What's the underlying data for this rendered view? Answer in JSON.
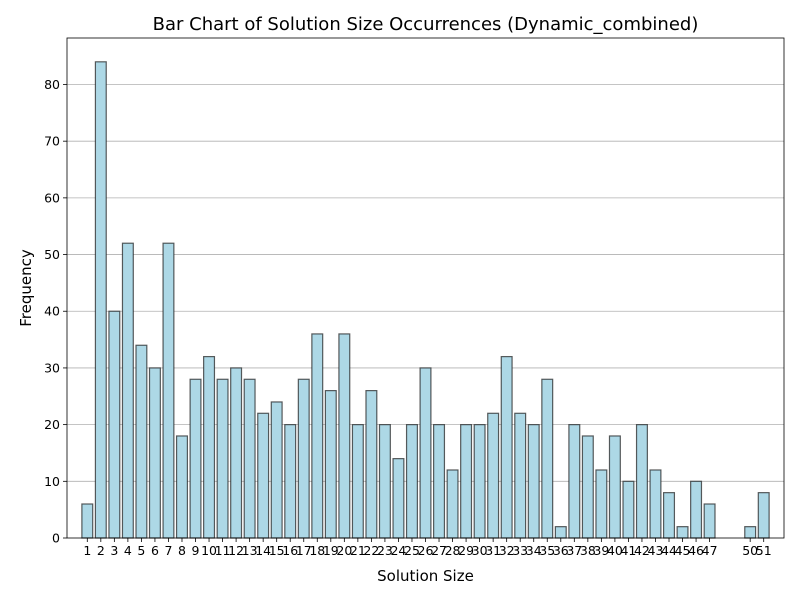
{
  "chart_data": {
    "type": "bar",
    "title": "Bar Chart of Solution Size Occurrences (Dynamic_combined)",
    "xlabel": "Solution Size",
    "ylabel": "Frequency",
    "x": [
      1,
      2,
      3,
      4,
      5,
      6,
      7,
      8,
      9,
      10,
      11,
      12,
      13,
      14,
      15,
      16,
      17,
      18,
      19,
      20,
      21,
      22,
      23,
      24,
      25,
      26,
      27,
      28,
      29,
      30,
      31,
      32,
      33,
      34,
      35,
      36,
      37,
      38,
      39,
      40,
      41,
      42,
      43,
      44,
      45,
      46,
      47,
      50,
      51
    ],
    "values": [
      6,
      84,
      40,
      52,
      34,
      30,
      52,
      18,
      28,
      32,
      28,
      30,
      28,
      22,
      24,
      20,
      28,
      36,
      26,
      36,
      20,
      26,
      20,
      14,
      20,
      30,
      20,
      12,
      20,
      20,
      22,
      32,
      22,
      20,
      28,
      2,
      20,
      18,
      12,
      18,
      10,
      20,
      12,
      8,
      2,
      10,
      6,
      2,
      8
    ],
    "xlim": [
      -0.5,
      52.5
    ],
    "ylim": [
      0,
      88.2
    ],
    "yticks": [
      0,
      10,
      20,
      30,
      40,
      50,
      60,
      70,
      80
    ],
    "grid": "horizontal",
    "bar_color": "#add8e6",
    "edge_color": "#000000"
  }
}
